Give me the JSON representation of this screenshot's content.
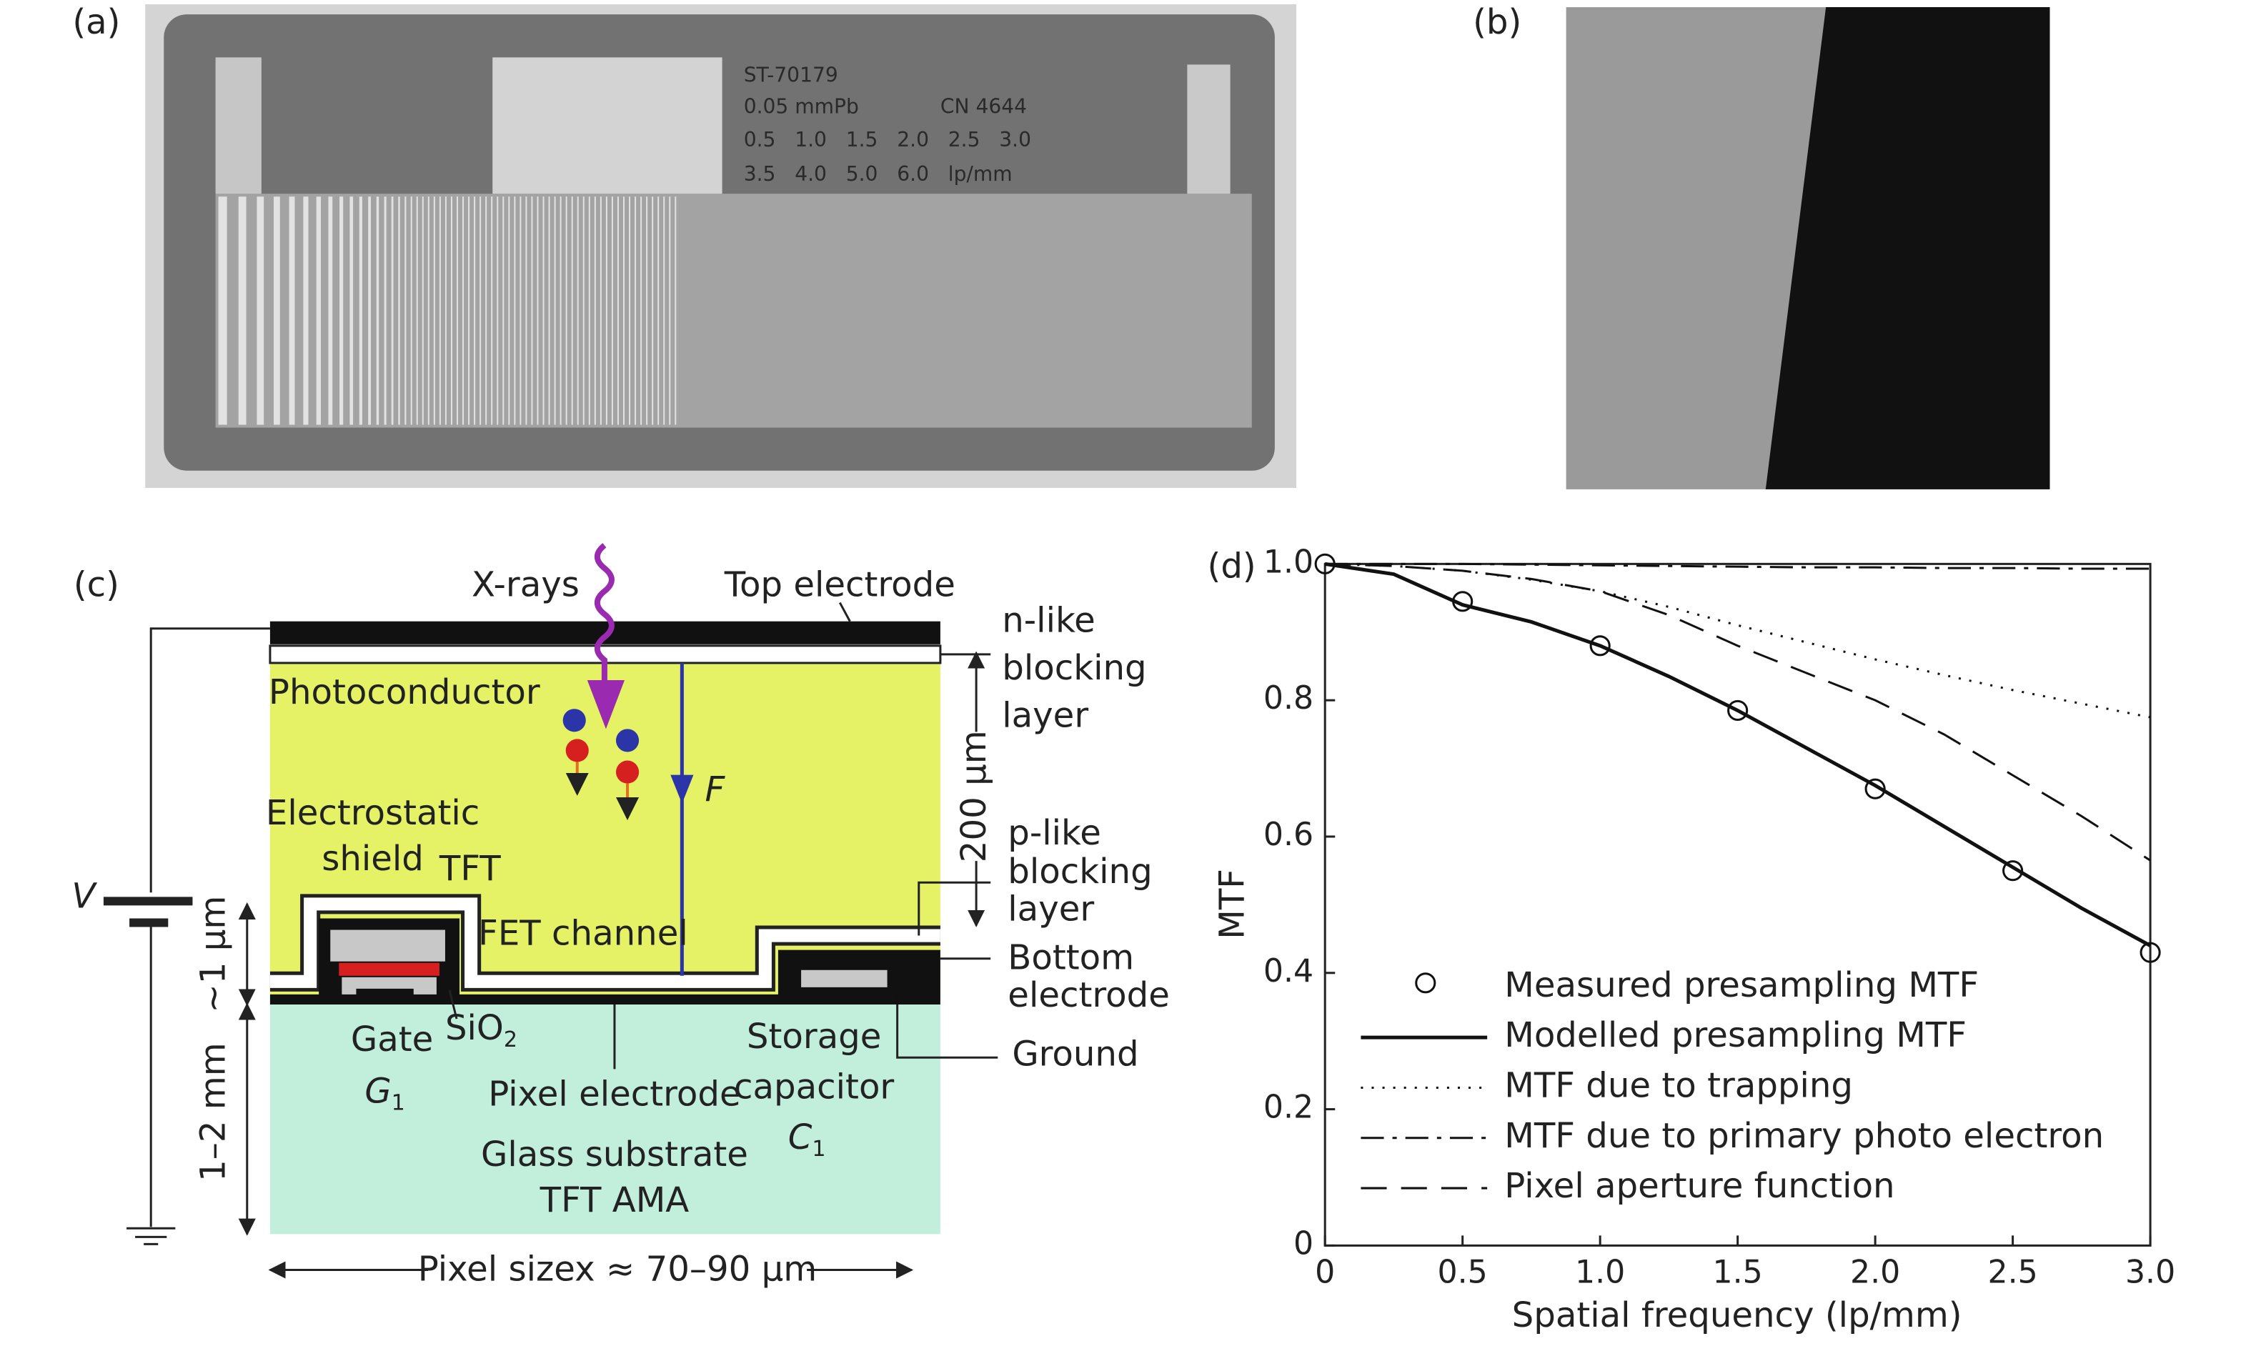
{
  "panels": {
    "a": {
      "label": "(a)",
      "phantom_texts": [
        "ST-70179",
        "0.05 mmPb",
        "CN 4644",
        "0.5   1.0   1.5   2.0   2.5   3.0",
        "3.5   4.0   5.0   6.0   lp/mm"
      ]
    },
    "b": {
      "label": "(b)"
    },
    "c": {
      "label": "(c)",
      "x_rays": "X-rays",
      "top_electrode": "Top electrode",
      "n_like": [
        "n-like",
        "blocking",
        "layer"
      ],
      "photoconductor": "Photoconductor",
      "field": "F",
      "thickness": "200 µm",
      "shield": [
        "Electrostatic",
        "shield"
      ],
      "tft": "TFT",
      "p_like": [
        "p-like",
        "blocking",
        "layer"
      ],
      "fet_channel": "FET channel",
      "bottom_electrode": [
        "Bottom",
        "electrode"
      ],
      "voltage": "V",
      "layer_height": "~1 µm",
      "gate": "Gate",
      "gate_symbol": "G",
      "gate_sub": "1",
      "sio2": "SiO",
      "sio2_sub": "2",
      "storage": [
        "Storage",
        "capacitor"
      ],
      "cap_symbol": "C",
      "cap_sub": "1",
      "ground": "Ground",
      "pixel_electrode": "Pixel electrode",
      "substrate_height": "1–2 mm",
      "substrate": [
        "Glass substrate",
        "TFT AMA"
      ],
      "pixel_size": "Pixel sizex ≈ 70–90 µm"
    }
  },
  "chart_data": {
    "type": "line",
    "panel_label": "(d)",
    "x_label": "Spatial frequency (lp/mm)",
    "y_label": "MTF",
    "xlim": [
      0,
      3
    ],
    "ylim": [
      0,
      1
    ],
    "xticks": [
      0,
      0.5,
      {
        "value": 1,
        "label": "1.0"
      },
      1.5,
      {
        "value": 2,
        "label": "2.0"
      },
      2.5,
      {
        "value": 3,
        "label": "3.0"
      }
    ],
    "yticks": [
      0,
      0.2,
      0.4,
      0.6,
      0.8,
      {
        "value": 1,
        "label": "1.0"
      }
    ],
    "x": [
      0,
      0.25,
      0.5,
      0.75,
      1,
      1.25,
      1.5,
      1.75,
      2,
      2.25,
      2.5,
      2.75,
      3
    ],
    "series": [
      {
        "name": "Measured presampling MTF",
        "color": "#111111",
        "style": "marker",
        "values": [
          1.0,
          null,
          0.945,
          null,
          0.88,
          null,
          0.785,
          null,
          0.67,
          null,
          0.55,
          null,
          0.43
        ]
      },
      {
        "name": "Modelled presampling MTF",
        "color": "#111111",
        "style": "solid",
        "values": [
          1.0,
          0.985,
          0.94,
          0.915,
          0.88,
          0.835,
          0.785,
          0.73,
          0.675,
          0.615,
          0.555,
          0.495,
          0.44
        ]
      },
      {
        "name": "MTF due to trapping",
        "color": "#111111",
        "style": "dotted",
        "values": [
          1.0,
          0.997,
          0.99,
          0.977,
          0.96,
          0.937,
          0.91,
          0.885,
          0.86,
          0.837,
          0.815,
          0.795,
          0.775
        ]
      },
      {
        "name": "MTF due to primary photo electron",
        "color": "#111111",
        "style": "dashdot",
        "values": [
          1.0,
          1.0,
          1.0,
          0.999,
          0.998,
          0.997,
          0.996,
          0.995,
          0.995,
          0.994,
          0.994,
          0.993,
          0.993
        ]
      },
      {
        "name": "Pixel aperture function",
        "color": "#111111",
        "style": "dashed",
        "values": [
          1.0,
          0.997,
          0.99,
          0.978,
          0.96,
          0.925,
          0.88,
          0.84,
          0.8,
          0.75,
          0.69,
          0.63,
          0.565
        ]
      }
    ]
  }
}
